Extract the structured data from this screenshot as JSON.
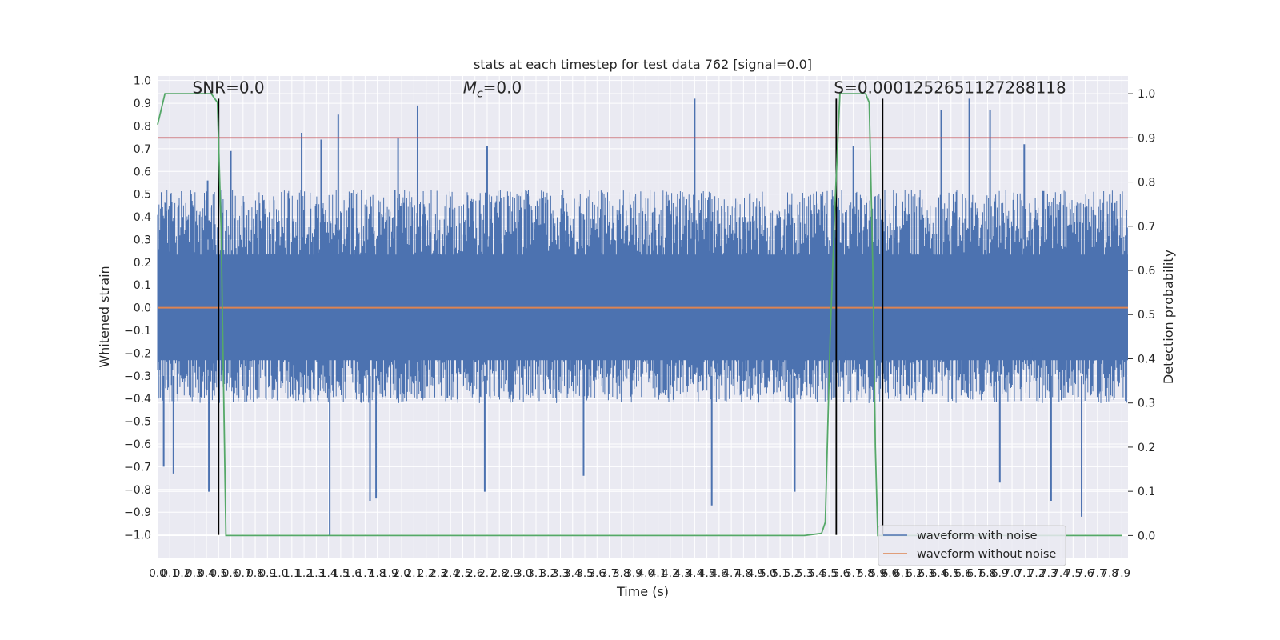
{
  "chart_data": {
    "type": "line",
    "title": "stats at each timestep for test data 762 [signal=0.0]",
    "xlabel": "Time (s)",
    "ylabel": "Whitened strain",
    "y2label": "Detection probability",
    "xlim": [
      0,
      7.95
    ],
    "ylim": [
      -1.1,
      1.02
    ],
    "y2lim": [
      -0.05,
      1.04
    ],
    "x_ticks": [
      0.0,
      0.1,
      0.2,
      0.3,
      0.4,
      0.5,
      0.6,
      0.7,
      0.8,
      0.9,
      1.0,
      1.1,
      1.2,
      1.3,
      1.4,
      1.5,
      1.6,
      1.7,
      1.8,
      1.9,
      2.0,
      2.1,
      2.2,
      2.3,
      2.4,
      2.5,
      2.6,
      2.7,
      2.8,
      2.9,
      3.0,
      3.1,
      3.2,
      3.3,
      3.4,
      3.5,
      3.6,
      3.7,
      3.8,
      3.9,
      4.0,
      4.1,
      4.2,
      4.3,
      4.4,
      4.5,
      4.6,
      4.7,
      4.8,
      4.9,
      5.0,
      5.1,
      5.2,
      5.3,
      5.4,
      5.5,
      5.6,
      5.7,
      5.8,
      5.9,
      6.0,
      6.1,
      6.2,
      6.3,
      6.4,
      6.5,
      6.6,
      6.7,
      6.8,
      6.9,
      7.0,
      7.1,
      7.2,
      7.3,
      7.4,
      7.5,
      7.6,
      7.7,
      7.8,
      7.9
    ],
    "x_tick_labels": [
      "0.0",
      "0.1",
      "0.2",
      "0.3",
      "0.4",
      "0.5",
      "0.6",
      "0.7",
      "0.8",
      "0.9",
      "1.0",
      "1.1",
      "1.2",
      "1.3",
      "1.4",
      "1.5",
      "1.6",
      "1.7",
      "1.8",
      "1.9",
      "2.0",
      "2.1",
      "2.2",
      "2.3",
      "2.4",
      "2.5",
      "2.6",
      "2.7",
      "2.8",
      "2.9",
      "3.0",
      "3.1",
      "3.2",
      "3.3",
      "3.4",
      "3.5",
      "3.6",
      "3.7",
      "3.8",
      "3.9",
      "4.0",
      "4.1",
      "4.2",
      "4.3",
      "4.4",
      "4.5",
      "4.6",
      "4.7",
      "4.8",
      "4.9",
      "5.0",
      "5.1",
      "5.2",
      "5.3",
      "5.4",
      "5.5",
      "5.6",
      "5.7",
      "5.8",
      "5.9",
      "6.0",
      "6.1",
      "6.2",
      "6.3",
      "6.4",
      "6.5",
      "6.6",
      "6.7",
      "6.8",
      "6.9",
      "7.0",
      "7.1",
      "7.2",
      "7.3",
      "7.4",
      "7.5",
      "7.6",
      "7.7",
      "7.8",
      "7.9"
    ],
    "y_ticks": [
      1.0,
      0.9,
      0.8,
      0.7,
      0.6,
      0.5,
      0.4,
      0.3,
      0.2,
      0.1,
      0.0,
      -0.1,
      -0.2,
      -0.3,
      -0.4,
      -0.5,
      -0.6,
      -0.7,
      -0.8,
      -0.9,
      -1.0
    ],
    "y_tick_labels": [
      "1.0",
      "0.9",
      "0.8",
      "0.7",
      "0.6",
      "0.5",
      "0.4",
      "0.3",
      "0.2",
      "0.1",
      "0.0",
      "−0.1",
      "−0.2",
      "−0.3",
      "−0.4",
      "−0.5",
      "−0.6",
      "−0.7",
      "−0.8",
      "−0.9",
      "−1.0"
    ],
    "y2_ticks": [
      1.0,
      0.9,
      0.8,
      0.7,
      0.6,
      0.5,
      0.4,
      0.3,
      0.2,
      0.1,
      0.0
    ],
    "y2_tick_labels": [
      "1.0",
      "0.9",
      "0.8",
      "0.7",
      "0.6",
      "0.5",
      "0.4",
      "0.3",
      "0.2",
      "0.1",
      "0.0"
    ],
    "series": [
      {
        "name": "waveform with noise",
        "color": "#4c72b0",
        "noise_band": [
          -0.42,
          0.52
        ],
        "peaks_up": [
          [
            0.41,
            0.56
          ],
          [
            0.6,
            0.69
          ],
          [
            1.18,
            0.77
          ],
          [
            1.34,
            0.74
          ],
          [
            1.48,
            0.85
          ],
          [
            1.97,
            0.75
          ],
          [
            2.13,
            0.89
          ],
          [
            2.7,
            0.71
          ],
          [
            4.4,
            0.92
          ],
          [
            5.7,
            0.71
          ],
          [
            6.42,
            0.87
          ],
          [
            6.65,
            0.92
          ],
          [
            6.82,
            0.87
          ],
          [
            7.1,
            0.72
          ]
        ],
        "peaks_down": [
          [
            0.05,
            -0.7
          ],
          [
            0.13,
            -0.73
          ],
          [
            0.42,
            -0.81
          ],
          [
            1.41,
            -1.0
          ],
          [
            1.74,
            -0.85
          ],
          [
            1.79,
            -0.84
          ],
          [
            2.68,
            -0.81
          ],
          [
            3.49,
            -0.74
          ],
          [
            4.54,
            -0.87
          ],
          [
            5.22,
            -0.81
          ],
          [
            6.9,
            -0.77
          ],
          [
            7.32,
            -0.85
          ],
          [
            7.57,
            -0.92
          ]
        ]
      },
      {
        "name": "waveform without noise",
        "color": "#dd8452",
        "y": 0.0
      },
      {
        "name": "detection probability",
        "color": "#55a868",
        "axis": "right",
        "x": [
          0.0,
          0.06,
          0.1,
          0.2,
          0.3,
          0.44,
          0.49,
          0.52,
          0.56,
          0.63,
          1.5,
          3.0,
          4.5,
          5.3,
          5.44,
          5.47,
          5.51,
          5.55,
          5.59,
          5.7,
          5.8,
          5.83,
          5.86,
          5.88,
          5.9,
          6.0,
          7.0,
          7.9
        ],
        "y": [
          0.93,
          1.0,
          1.0,
          1.0,
          1.0,
          1.0,
          0.98,
          0.7,
          0.0,
          0.0,
          0.0,
          0.0,
          0.0,
          0.0,
          0.005,
          0.03,
          0.45,
          0.75,
          1.0,
          1.0,
          1.0,
          0.98,
          0.6,
          0.2,
          0.0,
          0.0,
          0.0,
          0.0
        ]
      }
    ],
    "hlines": [
      {
        "y": 0.9,
        "axis": "right",
        "color": "#c44e52"
      }
    ],
    "vlines": [
      {
        "x": 0.5,
        "color": "#000000",
        "ymin": -1.0,
        "ymax": 0.92
      },
      {
        "x": 5.56,
        "color": "#000000",
        "ymin": -1.0,
        "ymax": 0.92
      },
      {
        "x": 5.94,
        "color": "#000000",
        "ymin": -1.0,
        "ymax": 0.92
      }
    ],
    "annotations": [
      {
        "text": "SNR=0.0",
        "x": 0.2,
        "y": 0.93
      },
      {
        "mc_prefix": "M",
        "mc_sub": "c",
        "mc_suffix": "=0.0",
        "x": 2.6,
        "y": 0.93
      },
      {
        "text": "S=0.0001252651127288118",
        "x": 5.58,
        "y": 0.93
      }
    ],
    "legend": {
      "position": "lower-right",
      "entries": [
        {
          "label": "waveform with noise",
          "color": "#4c72b0"
        },
        {
          "label": "waveform without noise",
          "color": "#dd8452"
        }
      ]
    }
  }
}
